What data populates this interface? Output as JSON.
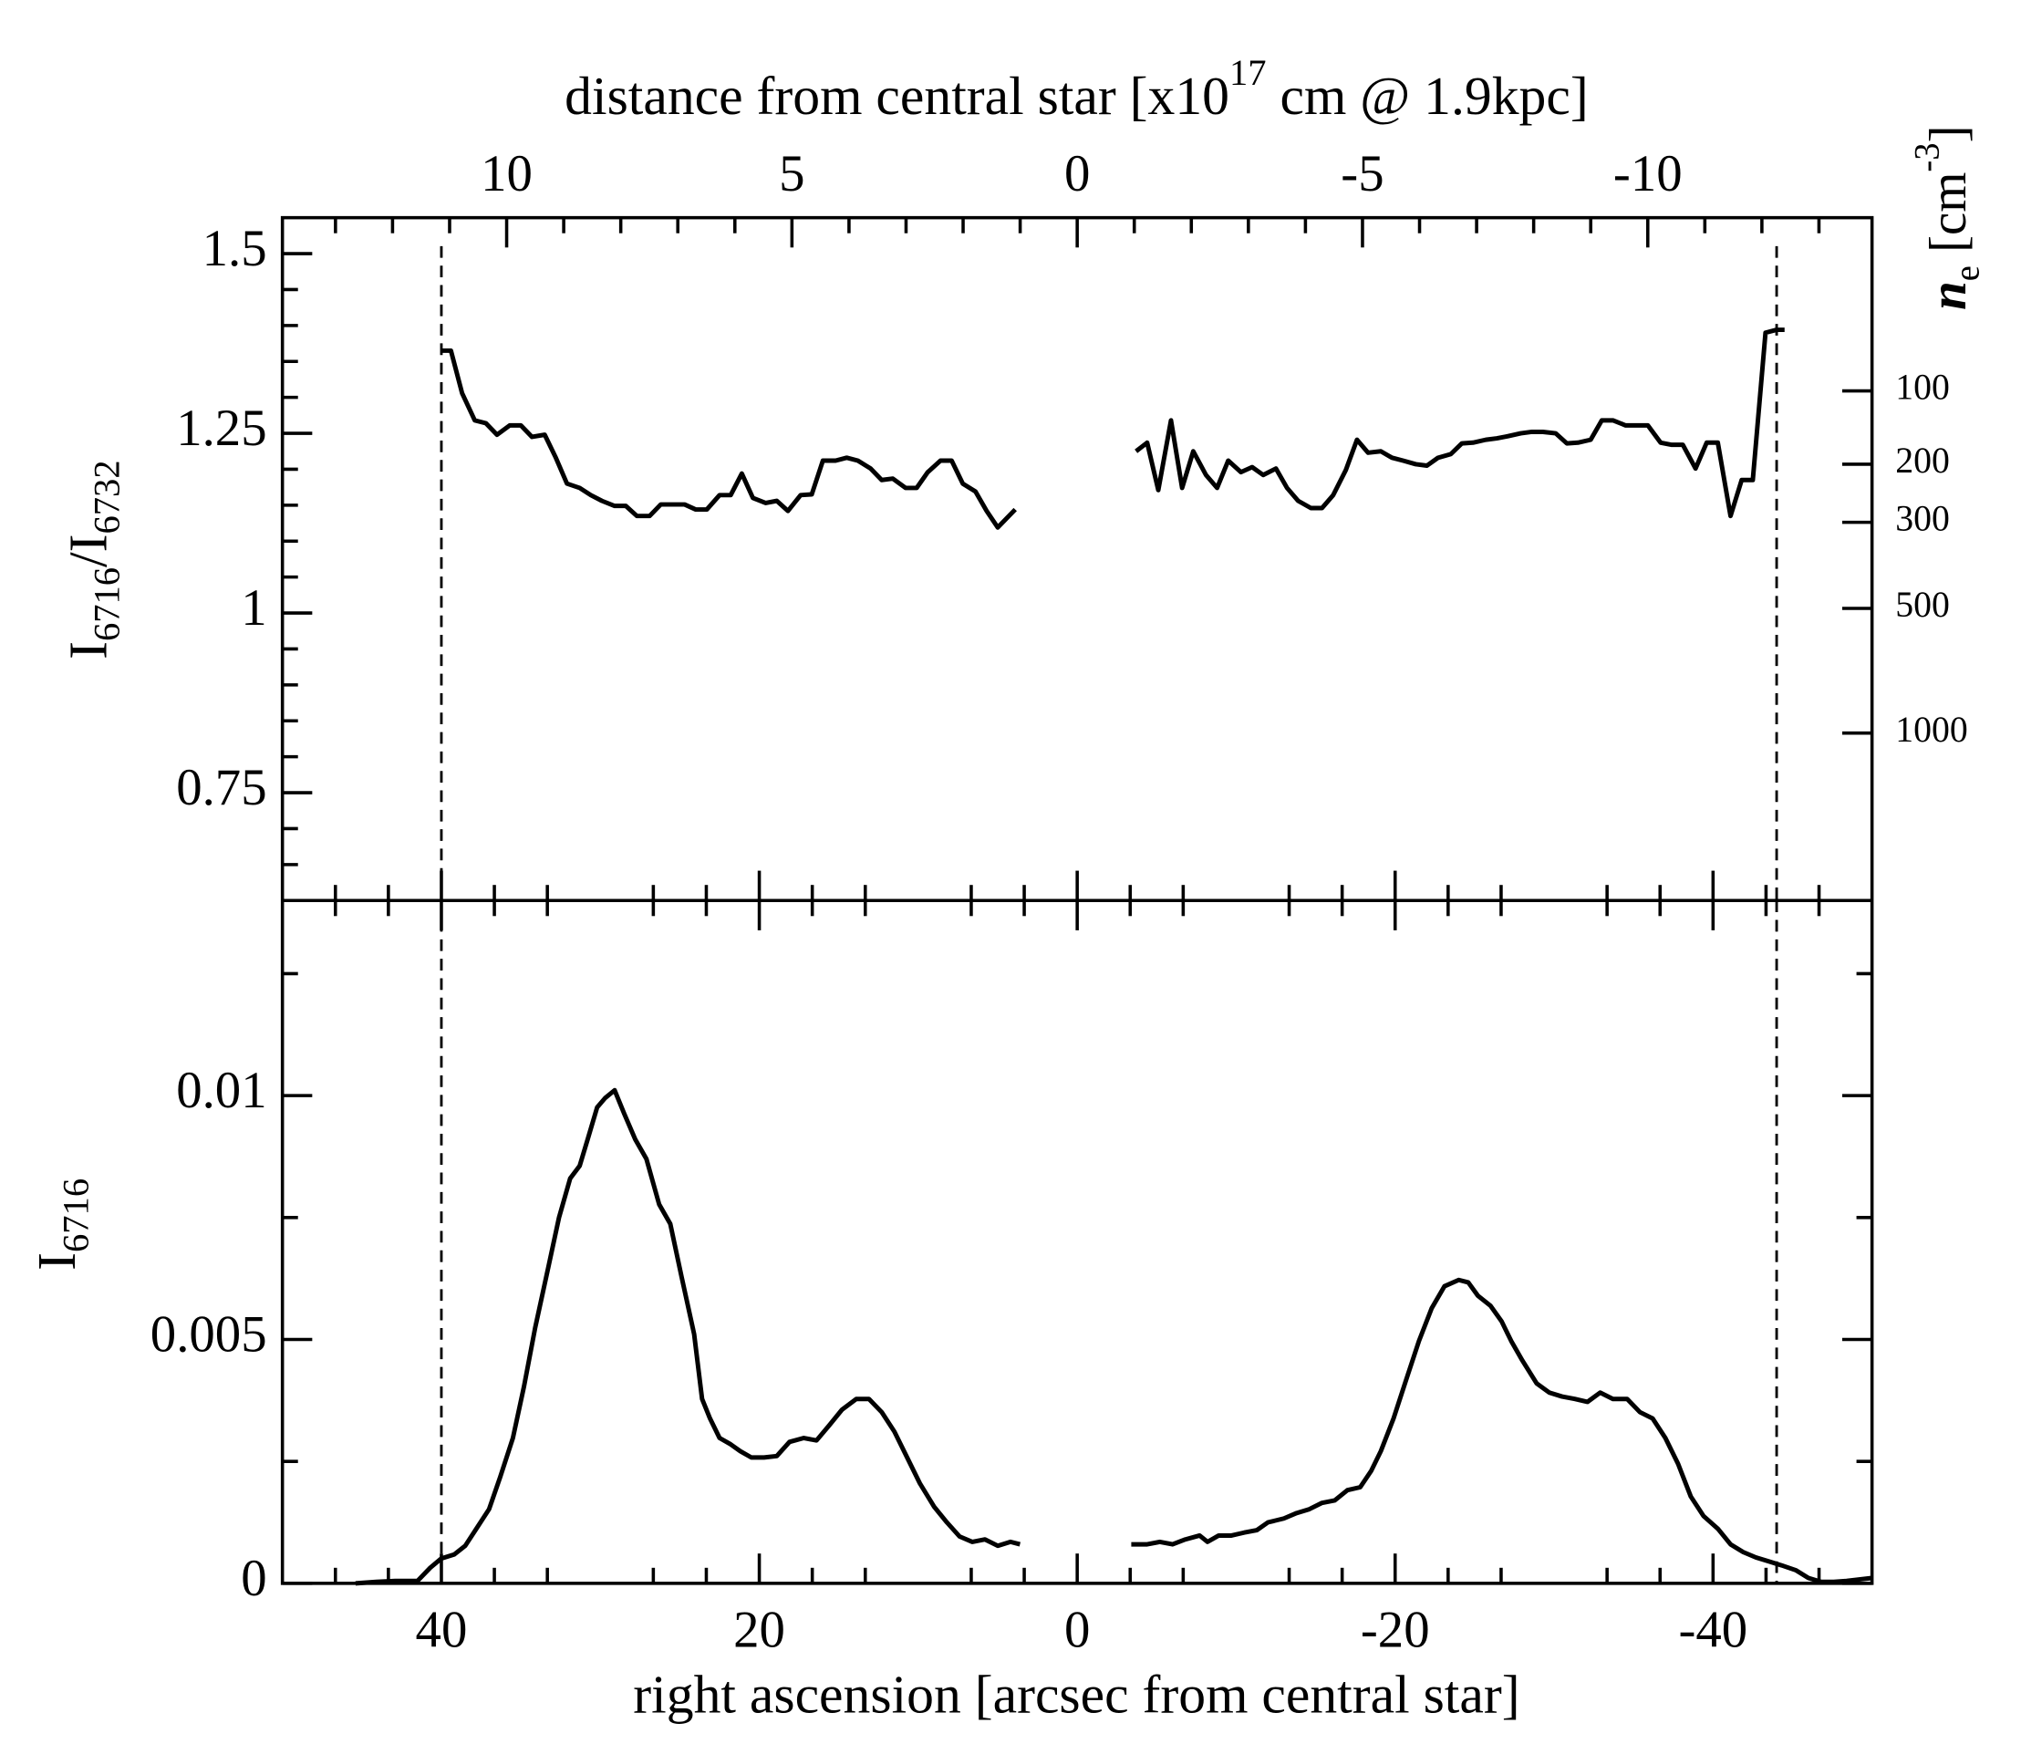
{
  "chart_data": [
    {
      "type": "line",
      "x2label": [
        {
          "text": "distance from central star [x10"
        },
        {
          "text": "17",
          "shift": "sup"
        },
        {
          "text": " cm @ 1.9kpc]"
        }
      ],
      "x2lim": [
        13.93,
        -13.93
      ],
      "x2ticks": [
        10,
        5,
        0,
        -5,
        -10
      ],
      "x2minor": [
        13,
        12,
        11,
        9,
        8,
        7,
        6,
        4,
        3,
        2,
        1,
        -1,
        -2,
        -3,
        -4,
        -6,
        -7,
        -8,
        -9,
        -11,
        -12,
        -13
      ],
      "ylabel": [
        {
          "text": "I"
        },
        {
          "text": "6716",
          "shift": "sub"
        },
        {
          "text": "/I"
        },
        {
          "text": "6732",
          "shift": "sub"
        }
      ],
      "ylim": [
        0.6,
        1.55
      ],
      "yticks": [
        0.75,
        1,
        1.25,
        1.5
      ],
      "yminor": [
        0.65,
        0.7,
        0.8,
        0.85,
        0.9,
        0.95,
        1.05,
        1.1,
        1.15,
        1.2,
        1.3,
        1.35,
        1.4,
        1.45
      ],
      "y2label": [
        {
          "text": "n",
          "style": "bold-italic"
        },
        {
          "text": "e",
          "shift": "sub"
        },
        {
          "text": " [cm"
        },
        {
          "text": "-3",
          "shift": "sup"
        },
        {
          "text": "]"
        }
      ],
      "y2ticks": [
        100,
        200,
        300,
        500,
        1000
      ],
      "xlim": [
        50,
        -50
      ],
      "xticks": [
        40,
        20,
        0,
        -20,
        -40
      ],
      "xminor": [
        46.667,
        43.333,
        36.667,
        33.333,
        26.667,
        23.333,
        16.667,
        13.333,
        6.667,
        3.333,
        -3.333,
        -6.667,
        -13.333,
        -16.667,
        -23.333,
        -26.667,
        -33.333,
        -36.667,
        -43.333,
        -46.667
      ],
      "vlines": [
        40,
        -44
      ],
      "series": [
        {
          "color": "#000000",
          "x": [
            40,
            39.4,
            38.7,
            37.9,
            37.2,
            36.5,
            35.7,
            35.0,
            34.3,
            33.5,
            32.8,
            32.1,
            31.3,
            30.6,
            29.9,
            29.1,
            28.4,
            27.7,
            26.9,
            26.2,
            25.5,
            24.7,
            24.0,
            23.3,
            22.5,
            21.8,
            21.1,
            20.4,
            19.6,
            18.9,
            18.2,
            17.4,
            16.7,
            16.0,
            15.2,
            14.5,
            13.8,
            13.0,
            12.3,
            11.6,
            10.8,
            10.1,
            9.4,
            8.6,
            7.9,
            7.2,
            6.4,
            5.7,
            5.0,
            3.9
          ],
          "values": [
            1.365,
            1.365,
            1.306,
            1.268,
            1.264,
            1.248,
            1.261,
            1.261,
            1.245,
            1.248,
            1.216,
            1.18,
            1.174,
            1.164,
            1.156,
            1.149,
            1.149,
            1.135,
            1.135,
            1.151,
            1.151,
            1.151,
            1.144,
            1.144,
            1.164,
            1.164,
            1.194,
            1.16,
            1.153,
            1.156,
            1.142,
            1.164,
            1.165,
            1.212,
            1.212,
            1.216,
            1.212,
            1.201,
            1.185,
            1.187,
            1.174,
            1.174,
            1.196,
            1.212,
            1.212,
            1.18,
            1.169,
            1.142,
            1.119,
            1.144
          ]
        },
        {
          "color": "#000000",
          "x": [
            -3.7,
            -4.4,
            -5.1,
            -5.9,
            -6.6,
            -7.3,
            -8.1,
            -8.8,
            -9.5,
            -10.3,
            -11.0,
            -11.7,
            -12.5,
            -13.2,
            -13.9,
            -14.7,
            -15.4,
            -16.1,
            -16.9,
            -17.6,
            -18.3,
            -19.1,
            -19.8,
            -20.5,
            -21.3,
            -22.0,
            -22.7,
            -23.5,
            -24.2,
            -24.9,
            -25.7,
            -26.4,
            -27.1,
            -27.9,
            -28.6,
            -29.3,
            -30.1,
            -30.8,
            -31.5,
            -32.3,
            -33.0,
            -33.7,
            -34.5,
            -35.2,
            -35.9,
            -36.7,
            -37.4,
            -38.1,
            -38.9,
            -39.6,
            -40.3,
            -41.1,
            -41.8,
            -42.5,
            -43.3,
            -44.0,
            -44.5
          ],
          "values": [
            1.225,
            1.237,
            1.171,
            1.268,
            1.174,
            1.225,
            1.192,
            1.174,
            1.212,
            1.196,
            1.203,
            1.192,
            1.201,
            1.174,
            1.156,
            1.146,
            1.146,
            1.164,
            1.199,
            1.241,
            1.223,
            1.225,
            1.216,
            1.212,
            1.207,
            1.205,
            1.216,
            1.221,
            1.236,
            1.237,
            1.241,
            1.243,
            1.246,
            1.25,
            1.252,
            1.252,
            1.25,
            1.236,
            1.237,
            1.241,
            1.268,
            1.268,
            1.261,
            1.261,
            1.261,
            1.237,
            1.234,
            1.234,
            1.201,
            1.237,
            1.237,
            1.135,
            1.185,
            1.185,
            1.39,
            1.394,
            1.394
          ]
        }
      ]
    },
    {
      "type": "line",
      "xlabel": [
        {
          "text": "right ascension [arcsec from central star]"
        }
      ],
      "xlim": [
        50,
        -50
      ],
      "xticks": [
        40,
        20,
        0,
        -20,
        -40
      ],
      "xminor": [
        46.667,
        43.333,
        36.667,
        33.333,
        26.667,
        23.333,
        16.667,
        13.333,
        6.667,
        3.333,
        -3.333,
        -6.667,
        -13.333,
        -16.667,
        -23.333,
        -26.667,
        -33.333,
        -36.667,
        -43.333,
        -46.667
      ],
      "ylabel": [
        {
          "text": "I"
        },
        {
          "text": "6716",
          "shift": "sub"
        }
      ],
      "ylim": [
        0,
        0.014
      ],
      "yticks": [
        0,
        0.005,
        0.01
      ],
      "yminor": [
        0.0025,
        0.0075,
        0.0125
      ],
      "vlines": [
        40,
        -44
      ],
      "series": [
        {
          "color": "#000000",
          "x": [
            45.4,
            44.1,
            42.9,
            41.5,
            40.7,
            40.0,
            39.2,
            38.5,
            37.8,
            37.0,
            36.3,
            35.5,
            34.8,
            34.1,
            33.3,
            32.6,
            31.9,
            31.3,
            30.8,
            30.2,
            29.7,
            29.1,
            28.5,
            27.8,
            27.1,
            26.3,
            25.6,
            24.9,
            24.1,
            23.6,
            23.1,
            22.5,
            21.8,
            21.2,
            20.5,
            19.7,
            18.9,
            18.1,
            17.2,
            16.4,
            15.6,
            14.8,
            13.9,
            13.1,
            12.3,
            11.5,
            10.7,
            9.9,
            9.0,
            8.2,
            7.4,
            6.6,
            5.8,
            5.0,
            4.2,
            3.6
          ],
          "values": [
            0,
            3e-05,
            5e-05,
            5e-05,
            0.00032,
            0.00051,
            0.00059,
            0.00077,
            0.00112,
            0.00152,
            0.00218,
            0.00298,
            0.00404,
            0.00524,
            0.00644,
            0.0075,
            0.0083,
            0.00856,
            0.0091,
            0.00976,
            0.00995,
            0.01011,
            0.00963,
            0.0091,
            0.0087,
            0.00777,
            0.00737,
            0.0063,
            0.00511,
            0.00378,
            0.00338,
            0.00298,
            0.00285,
            0.00271,
            0.00258,
            0.00258,
            0.00261,
            0.0029,
            0.00298,
            0.00293,
            0.00324,
            0.00356,
            0.00378,
            0.00378,
            0.00351,
            0.00311,
            0.00258,
            0.00205,
            0.00157,
            0.00125,
            0.00096,
            0.00085,
            0.0009,
            0.00077,
            0.00085,
            0.0008
          ]
        },
        {
          "color": "#000000",
          "x": [
            -3.4,
            -4.4,
            -5.2,
            -6.0,
            -6.8,
            -7.7,
            -8.2,
            -8.9,
            -9.7,
            -10.5,
            -11.3,
            -12.0,
            -13.0,
            -13.8,
            -14.6,
            -15.4,
            -16.2,
            -17.0,
            -17.8,
            -18.5,
            -19.1,
            -19.9,
            -20.7,
            -21.5,
            -22.3,
            -23.1,
            -24.0,
            -24.6,
            -25.2,
            -26.0,
            -26.7,
            -27.3,
            -28.0,
            -28.9,
            -29.7,
            -30.5,
            -31.3,
            -32.1,
            -32.9,
            -33.7,
            -34.6,
            -35.4,
            -36.2,
            -37.0,
            -37.8,
            -38.6,
            -39.4,
            -40.3,
            -41.1,
            -41.9,
            -42.7,
            -43.5,
            -44.3,
            -45.2,
            -46.0,
            -46.8,
            -47.6,
            -48.4,
            -49.2,
            -50.0
          ],
          "values": [
            0.0008,
            0.0008,
            0.00085,
            0.0008,
            0.0009,
            0.00098,
            0.00085,
            0.00098,
            0.00098,
            0.00104,
            0.00109,
            0.00125,
            0.00133,
            0.00144,
            0.00152,
            0.00165,
            0.0017,
            0.00191,
            0.00197,
            0.00231,
            0.00271,
            0.00338,
            0.00418,
            0.00497,
            0.00564,
            0.00609,
            0.00622,
            0.00617,
            0.0059,
            0.00569,
            0.00537,
            0.00497,
            0.00457,
            0.0041,
            0.00391,
            0.00383,
            0.00378,
            0.00372,
            0.00391,
            0.00378,
            0.00378,
            0.00351,
            0.00338,
            0.00298,
            0.00245,
            0.00178,
            0.00138,
            0.00112,
            0.0008,
            0.00064,
            0.00053,
            0.00045,
            0.00037,
            0.00027,
            0.00011,
            3e-05,
            3e-05,
            5e-05,
            8e-05,
            0.00011
          ]
        }
      ]
    }
  ]
}
